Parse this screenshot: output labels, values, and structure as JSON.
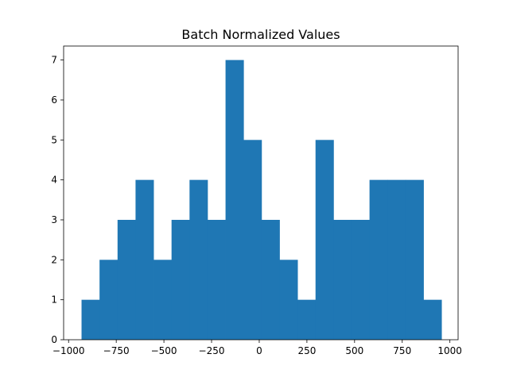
{
  "chart_data": {
    "type": "bar",
    "title": "Batch Normalized Values",
    "xlabel": "",
    "ylabel": "",
    "bar_color": "#1f77b4",
    "bin_start": -932,
    "bin_width": 94.4,
    "counts": [
      1,
      2,
      3,
      4,
      2,
      3,
      4,
      3,
      7,
      5,
      3,
      2,
      1,
      5,
      3,
      3,
      4,
      4,
      4,
      1
    ],
    "xlim": [
      -1026,
      1043
    ],
    "ylim": [
      0,
      7.35
    ],
    "x_ticks": [
      -1000,
      -750,
      -500,
      -250,
      0,
      250,
      500,
      750,
      1000
    ],
    "x_tick_labels": [
      "−1000",
      "−750",
      "−500",
      "−250",
      "0",
      "250",
      "500",
      "750",
      "1000"
    ],
    "y_ticks": [
      0,
      1,
      2,
      3,
      4,
      5,
      6,
      7
    ],
    "y_tick_labels": [
      "0",
      "1",
      "2",
      "3",
      "4",
      "5",
      "6",
      "7"
    ],
    "grid": false,
    "legend": "none"
  }
}
